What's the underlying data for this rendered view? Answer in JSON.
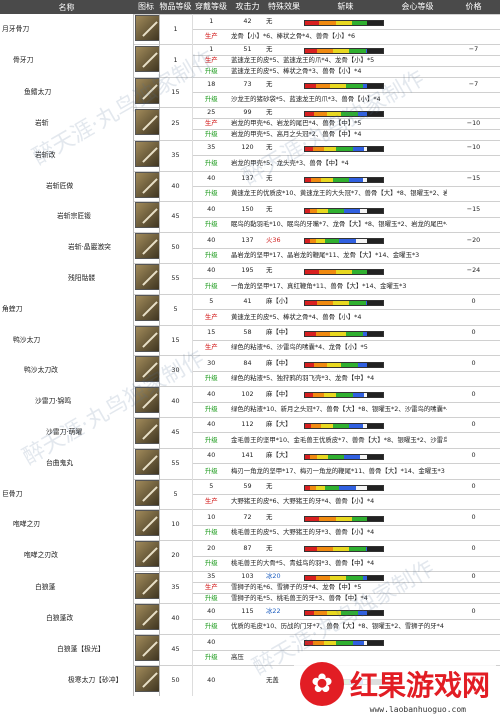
{
  "headers": [
    "名称",
    "图标",
    "物品等级",
    "穿戴等级",
    "攻击力",
    "特殊效果",
    "斩味",
    "会心等级",
    "价格"
  ],
  "labels": {
    "produce": "生产",
    "upgrade": "升级"
  },
  "sharp_colors": {
    "red": "#d82020",
    "orange": "#f08a10",
    "yellow": "#e8d820",
    "green": "#30b030",
    "blue": "#3060e0",
    "white": "#f4f4f4",
    "purple": "#a030d0"
  },
  "weapons": [
    {
      "name": "月牙骨刀",
      "indent": 0,
      "item_level": "1",
      "rows": [
        {
          "slot": "1",
          "atk": "42",
          "sp": "无",
          "aff": "",
          "price": ""
        },
        {
          "slot": "生产",
          "slot_type": "red",
          "mat": "龙骨【小】*6、棒状之骨*4、兽骨【小】*6"
        }
      ]
    },
    {
      "name": "骨牙刀",
      "indent": 1,
      "item_level": "1",
      "rows": [
        {
          "slot": "1",
          "atk": "51",
          "sp": "无",
          "aff": "−7",
          "price": "500z"
        },
        {
          "slot": "生产",
          "slot_type": "red",
          "mat": "蓝速龙王的皮*5、蓝速龙王的爪*4、龙骨【小】*5",
          "price": "400z"
        },
        {
          "slot": "升级",
          "slot_type": "green",
          "mat": "蓝速龙王的皮*5、棒状之骨*3、兽骨【小】*4"
        }
      ]
    },
    {
      "name": "鱼鳍太刀",
      "indent": 2,
      "item_level": "15",
      "rows": [
        {
          "slot": "18",
          "atk": "73",
          "sp": "无",
          "aff": "−7",
          "price": "1680z"
        },
        {
          "slot": "升级",
          "slot_type": "green",
          "mat": "沙龙王的猪砂袋*5、蓝速龙王的爪*3、兽骨【小】*4"
        }
      ]
    },
    {
      "name": "岩斩",
      "indent": 3,
      "item_level": "25",
      "rows": [
        {
          "slot": "25",
          "atk": "99",
          "sp": "无",
          "aff": "",
          "price": "5600z"
        },
        {
          "slot": "生产",
          "slot_type": "red",
          "mat": "岩龙的甲壳*6、岩龙的尾巴*4、兽骨【中】*5",
          "aff": "−10",
          "price": "4480z"
        },
        {
          "slot": "升级",
          "slot_type": "green",
          "mat": "岩龙的甲壳*5、高月之头冠*2、兽骨【中】*4"
        }
      ]
    },
    {
      "name": "岩斩改",
      "indent": 3,
      "item_level": "35",
      "rows": [
        {
          "slot": "35",
          "atk": "120",
          "sp": "无",
          "aff": "−10",
          "price": "12880z"
        },
        {
          "slot": "升级",
          "slot_type": "green",
          "mat": "岩龙的甲壳*5、龙头壳*3、兽骨【中】*4"
        }
      ]
    },
    {
      "name": "岩斩匠做",
      "indent": 4,
      "item_level": "40",
      "rows": [
        {
          "slot": "40",
          "atk": "137",
          "sp": "无",
          "aff": "−15",
          "price": "22400z"
        },
        {
          "slot": "升级",
          "slot_type": "green",
          "mat": "黄速龙王的优质皮*10、黄速龙王的大头冠*7、兽骨【大】*8、银曜玉*2、岩龙的尾巴*4"
        }
      ]
    },
    {
      "name": "岩斩宗匠锻",
      "indent": 5,
      "item_level": "45",
      "rows": [
        {
          "slot": "40",
          "atk": "150",
          "sp": "无",
          "aff": "−15",
          "price": "22400z"
        },
        {
          "slot": "升级",
          "slot_type": "green",
          "mat": "眠鸟的黏羽毛*10、眠鸟的牙嘴*7、龙骨【大】*8、银曜玉*2、岩龙的尾巴*4"
        }
      ]
    },
    {
      "name": "岩斩·晶巖激突",
      "indent": 6,
      "item_level": "50",
      "rows": [
        {
          "slot": "40",
          "atk": "137",
          "sp": "火36",
          "sp_type": "fire",
          "aff": "−20",
          "price": "24000z"
        },
        {
          "slot": "升级",
          "slot_type": "green",
          "mat": "晶岩龙的坚甲*17、晶岩龙的鞭尾*11、龙骨【大】*14、金曜玉*3"
        }
      ]
    },
    {
      "name": "残阳骷髅",
      "indent": 6,
      "item_level": "55",
      "rows": [
        {
          "slot": "40",
          "atk": "195",
          "sp": "无",
          "aff": "−24",
          "price": "24000z"
        },
        {
          "slot": "升级",
          "slot_type": "green",
          "mat": "一角龙的坚甲*17、真红鞭角*11、兽骨【大】*14、金曜玉*3"
        }
      ]
    },
    {
      "name": "角蝰刀",
      "indent": 0,
      "item_level": "5",
      "rows": [
        {
          "slot": "5",
          "atk": "41",
          "sp": "麻【小】",
          "sp_type": "para",
          "aff": "0",
          "price": "640z"
        },
        {
          "slot": "生产",
          "slot_type": "red",
          "mat": "黄速龙王的皮*5、棒状之骨*4、兽骨【小】*4"
        }
      ]
    },
    {
      "name": "鸭沙太刀",
      "indent": 1,
      "item_level": "15",
      "rows": [
        {
          "slot": "15",
          "atk": "58",
          "sp": "麻【中】",
          "sp_type": "para",
          "aff": "0",
          "price": "2400z"
        },
        {
          "slot": "生产",
          "slot_type": "red",
          "mat": "绿色的粘液*6、沙雷鸟的嗉囊*4、龙骨【小】*5"
        }
      ]
    },
    {
      "name": "鸭沙太刀改",
      "indent": 2,
      "item_level": "30",
      "rows": [
        {
          "slot": "30",
          "atk": "84",
          "sp": "麻【中】",
          "sp_type": "para",
          "aff": "0",
          "price": "7520z"
        },
        {
          "slot": "升级",
          "slot_type": "green",
          "mat": "绿色的粘液*5、独狩鸦的羽飞壳*3、龙骨【中】*4"
        }
      ]
    },
    {
      "name": "沙雷刀·锦鸣",
      "indent": 3,
      "item_level": "40",
      "rows": [
        {
          "slot": "40",
          "atk": "102",
          "sp": "麻【中】",
          "sp_type": "para",
          "aff": "0",
          "price": "22400z"
        },
        {
          "slot": "升级",
          "slot_type": "green",
          "mat": "绿色的粘液*10、新月之头冠*7、兽骨【大】*8、银曜玉*2、沙雷鸟的嗉囊*4"
        }
      ]
    },
    {
      "name": "沙雷刀·萌曜",
      "indent": 4,
      "item_level": "45",
      "rows": [
        {
          "slot": "40",
          "atk": "112",
          "sp": "麻【大】",
          "sp_type": "para",
          "aff": "0",
          "price": "22400z"
        },
        {
          "slot": "升级",
          "slot_type": "green",
          "mat": "金毛兽王的坚甲*10、金毛兽王优质皮*7、兽骨【大】*8、银曜玉*2、沙雷鸟的嗉囊*4"
        }
      ]
    },
    {
      "name": "台曲鬼丸",
      "indent": 4,
      "item_level": "55",
      "rows": [
        {
          "slot": "40",
          "atk": "141",
          "sp": "麻【大】",
          "sp_type": "para",
          "aff": "0",
          "price": "24000z"
        },
        {
          "slot": "升级",
          "slot_type": "green",
          "mat": "梅刃一角龙的坚甲*17、梅刃一角龙的鞭尾*11、兽骨【大】*14、金曜玉*3"
        }
      ]
    },
    {
      "name": "巨骨刀",
      "indent": 0,
      "item_level": "5",
      "rows": [
        {
          "slot": "5",
          "atk": "59",
          "sp": "无",
          "aff": "0",
          "price": "500z"
        },
        {
          "slot": "生产",
          "slot_type": "red",
          "mat": "大野猪王的皮*6、大野猪王的牙*4、兽骨【小】*4"
        }
      ]
    },
    {
      "name": "咆哮之刃",
      "indent": 1,
      "item_level": "10",
      "rows": [
        {
          "slot": "10",
          "atk": "72",
          "sp": "无",
          "aff": "0",
          "price": "1040z"
        },
        {
          "slot": "升级",
          "slot_type": "green",
          "mat": "桃毛兽王的皮*5、大野猪王的牙*3、兽骨【小】*4"
        }
      ]
    },
    {
      "name": "咆哮之刃改",
      "indent": 2,
      "item_level": "20",
      "rows": [
        {
          "slot": "20",
          "atk": "87",
          "sp": "无",
          "aff": "0",
          "price": "2720z"
        },
        {
          "slot": "升级",
          "slot_type": "green",
          "mat": "桃毛兽王的大骨*5、青蛙鸟的羽*3、兽骨【中】*4"
        }
      ]
    },
    {
      "name": "白狼蓬",
      "indent": 3,
      "item_level": "35",
      "rows": [
        {
          "slot": "35",
          "atk": "103",
          "sp": "冰20",
          "sp_type": "ice",
          "aff": "0",
          "price": "16100z"
        },
        {
          "slot": "生产",
          "slot_type": "red",
          "mat": "雪狮子的毛*6、雪狮子的牙*4、龙骨【中】*5",
          "price": "12880z"
        },
        {
          "slot": "升级",
          "slot_type": "green",
          "mat": "雪狮子的毛*5、桃毛兽王的牙*3、兽骨【中】*4"
        }
      ]
    },
    {
      "name": "白狼蓬改",
      "indent": 4,
      "item_level": "40",
      "rows": [
        {
          "slot": "40",
          "atk": "115",
          "sp": "冰22",
          "sp_type": "ice",
          "aff": "0",
          "price": "22400z"
        },
        {
          "slot": "升级",
          "slot_type": "green",
          "mat": "优质的毛皮*10、历战的门牙*7、兽骨【大】*8、银曜玉*2、雪狮子的牙*4"
        }
      ]
    },
    {
      "name": "白狼蓬【极光】",
      "indent": 5,
      "item_level": "45",
      "rows": [
        {
          "slot": "40",
          "atk": "",
          "sp": "",
          "aff": "",
          "price": ""
        },
        {
          "slot": "升级",
          "slot_type": "green",
          "mat": "高压"
        }
      ]
    },
    {
      "name": "极寒太刀【砂冲】",
      "indent": 6,
      "item_level": "50",
      "rows": [
        {
          "slot": "40",
          "atk": "",
          "sp": "无盖",
          "aff": "",
          "price": ""
        }
      ]
    }
  ],
  "watermarks": [
    "醉天涯·丸鸟独家制作",
    "醉天涯·丸鸟独家制作",
    "醉天涯·丸鸟独家制作",
    "醉天涯·丸鸟独家制作"
  ],
  "logo": {
    "name": "红果游戏网",
    "url": "www.laobanhuoguo.com"
  }
}
